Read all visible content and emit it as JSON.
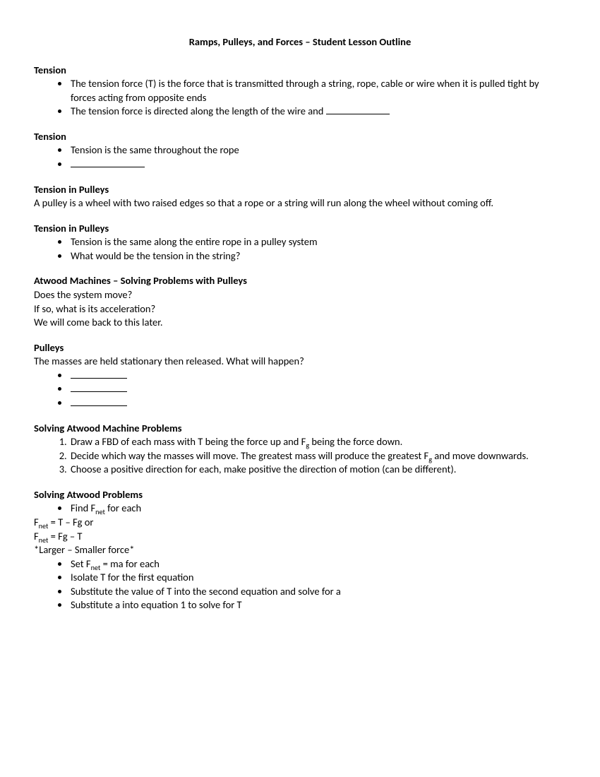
{
  "title": "Ramps, Pulleys, and Forces – Student Lesson Outline",
  "sections": {
    "tension1": {
      "heading": "Tension",
      "bullets": [
        "The tension force (T) is the force that is transmitted through a string, rope, cable or wire when it is pulled tight by forces acting from opposite ends",
        "The tension force is directed along the length of the wire and "
      ]
    },
    "tension2": {
      "heading": "Tension",
      "bullets": [
        "Tension is the same throughout the rope"
      ]
    },
    "tensionPulleys1": {
      "heading": "Tension in Pulleys",
      "text": "A pulley is a wheel with two raised edges so that a rope or a string will run along the wheel without coming off."
    },
    "tensionPulleys2": {
      "heading": "Tension in Pulleys",
      "bullets": [
        "Tension is the same along the entire rope in a pulley system",
        "What would be the tension in the string?"
      ]
    },
    "atwood1": {
      "heading": "Atwood Machines – Solving Problems with Pulleys",
      "lines": [
        "Does the system move?",
        "If so, what is its acceleration?",
        "We will come back to this later."
      ]
    },
    "pulleys": {
      "heading": "Pulleys",
      "text": "The masses are held stationary then released. What will happen?"
    },
    "solvingAtwoodMachine": {
      "heading": "Solving Atwood Machine Problems",
      "items": {
        "one_a": "Draw a FBD of each mass with T being the force up and F",
        "one_b": " being the force down.",
        "two_a": "Decide which way the masses will move.  The greatest mass will produce the greatest F",
        "two_b": " and move downwards.",
        "three": "Choose a positive direction for each, make positive the direction of motion (can be different)."
      }
    },
    "solvingAtwood": {
      "heading": "Solving Atwood Problems",
      "bullet1_a": "Find F",
      "bullet1_b": " for each",
      "eq1_a": "F",
      "eq1_b": " = T – Fg       or",
      "eq2_a": "F",
      "eq2_b": " = Fg – T",
      "note": "*Larger – Smaller force*",
      "bullet2_a": "Set F",
      "bullet2_b": " = ma for each",
      "bullet3": "Isolate T for the first equation",
      "bullet4": "Substitute the value of T into the second equation and solve for a",
      "bullet5": "Substitute a into equation 1 to solve for T"
    },
    "subscripts": {
      "g": "g",
      "net": "net"
    }
  }
}
